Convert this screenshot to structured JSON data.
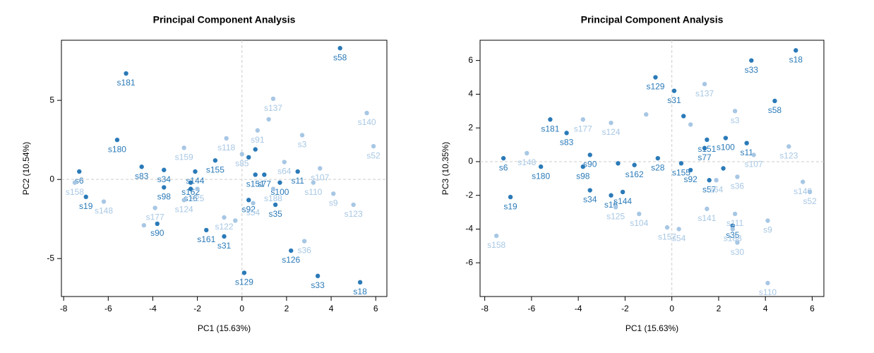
{
  "chart_data": [
    {
      "type": "scatter",
      "title": "Principal Component Analysis",
      "xlabel": "PC1 (15.63%)",
      "ylabel": "PC2 (10.54%)",
      "xlim": [
        -8.1,
        6.5
      ],
      "ylim": [
        -7.4,
        8.8
      ],
      "xticks": [
        -8,
        -6,
        -4,
        -2,
        0,
        2,
        4,
        6
      ],
      "yticks": [
        -5,
        0,
        5
      ],
      "vlines": [
        0
      ],
      "hlines": [
        0
      ],
      "series": [
        {
          "color": "#2a7ab8",
          "x": [
            4.4,
            -5.2,
            -5.6,
            -4.5,
            -7.3,
            -7.0,
            -3.8,
            -3.5,
            -3.5,
            -2.3,
            -2.3,
            -2.1,
            -1.6,
            -0.8,
            0.1,
            2.2,
            3.4,
            5.3,
            1.5,
            0.3,
            1.7,
            2.5,
            0.6,
            1.0,
            -1.2,
            0.6,
            0.3
          ],
          "y": [
            8.3,
            6.7,
            2.5,
            0.8,
            0.5,
            -1.1,
            -2.8,
            0.6,
            -0.5,
            -0.6,
            -0.2,
            0.5,
            -3.2,
            -3.6,
            -5.9,
            -4.5,
            -6.1,
            -6.5,
            -1.6,
            -1.3,
            -0.2,
            0.5,
            0.3,
            0.3,
            1.2,
            1.9,
            1.4
          ],
          "labels": [
            "s58",
            "s181",
            "s180",
            "s83",
            "s6",
            "s19",
            "s90",
            "s34",
            "s98",
            "s16",
            "s162",
            "s144",
            "s161",
            "s31",
            "s129",
            "s126",
            "s33",
            "s18",
            "s35",
            "s92",
            "s100",
            "s11",
            "s151",
            "s77",
            "s155",
            null,
            null
          ]
        },
        {
          "color": "#a7c7e4",
          "x": [
            -7.5,
            -6.2,
            -3.9,
            -2.6,
            -2.6,
            0.0,
            -0.7,
            0.7,
            1.4,
            2.7,
            1.9,
            5.6,
            5.9,
            3.5,
            3.2,
            4.1,
            5.0,
            2.8,
            1.4,
            0.5,
            -0.8,
            -2.0,
            -4.4,
            1.2,
            -0.3
          ],
          "y": [
            -0.2,
            -1.4,
            -1.8,
            -1.3,
            2.0,
            1.6,
            2.6,
            3.1,
            5.1,
            2.8,
            1.1,
            4.2,
            2.1,
            0.7,
            -0.2,
            -0.9,
            -1.6,
            -3.9,
            -0.6,
            -1.5,
            -2.4,
            -0.6,
            -2.9,
            3.8,
            -2.6
          ],
          "labels": [
            "s158",
            "s148",
            "s177",
            "s124",
            "s159",
            "s85",
            "s118",
            "s91",
            "s137",
            "s3",
            "s64",
            "s140",
            "s52",
            "s107",
            "s110",
            "s9",
            "s123",
            "s36",
            "s188",
            "s54",
            "s122",
            "s25",
            null,
            null,
            null
          ]
        }
      ]
    },
    {
      "type": "scatter",
      "title": "Principal Component Analysis",
      "xlabel": "PC1 (15.63%)",
      "ylabel": "PC3 (10.35%)",
      "xlim": [
        -8.2,
        6.5
      ],
      "ylim": [
        -8.0,
        7.2
      ],
      "xticks": [
        -8,
        -6,
        -4,
        -2,
        0,
        2,
        4,
        6
      ],
      "yticks": [
        -6,
        -4,
        -2,
        0,
        2,
        4,
        6
      ],
      "vlines": [
        0
      ],
      "hlines": [
        0
      ],
      "series": [
        {
          "color": "#2a7ab8",
          "x": [
            5.3,
            3.4,
            4.4,
            0.1,
            -0.7,
            -5.2,
            -5.6,
            -4.5,
            -7.2,
            -6.9,
            -3.5,
            -3.8,
            -3.5,
            -2.6,
            -2.1,
            -1.6,
            1.5,
            2.3,
            3.2,
            1.4,
            1.6,
            2.6,
            0.8,
            0.4,
            -0.6,
            0.5,
            2.2,
            -2.3
          ],
          "y": [
            6.6,
            6.0,
            3.6,
            4.2,
            5.0,
            2.5,
            -0.3,
            1.7,
            0.2,
            -2.1,
            0.4,
            -0.3,
            -1.7,
            -2.0,
            -1.8,
            -0.2,
            1.3,
            1.4,
            1.1,
            0.8,
            -1.1,
            -3.8,
            -0.5,
            -0.1,
            0.2,
            2.7,
            -0.4,
            -0.1
          ],
          "labels": [
            "s18",
            "s33",
            "s58",
            "s31",
            "s129",
            "s181",
            "s180",
            "s83",
            "s6",
            "s19",
            "s90",
            "s98",
            "s34",
            "s16",
            "s144",
            "s162",
            "s151",
            "s100",
            "s11",
            "s77",
            "s57",
            "s35",
            "s92",
            "s155",
            "s28",
            null,
            null,
            null
          ]
        },
        {
          "color": "#a7c7e4",
          "x": [
            -7.5,
            -6.2,
            -3.8,
            -2.6,
            1.4,
            2.7,
            5.0,
            5.6,
            5.9,
            4.1,
            4.1,
            2.7,
            1.5,
            2.8,
            2.6,
            -0.2,
            0.3,
            -1.4,
            -2.4,
            2.8,
            1.9,
            3.5,
            0.8,
            -1.1
          ],
          "y": [
            -4.4,
            0.5,
            2.5,
            2.3,
            4.6,
            3.0,
            0.9,
            -1.2,
            -1.8,
            -7.2,
            -3.5,
            -3.1,
            -2.8,
            -4.8,
            -4.0,
            -3.9,
            -4.0,
            -3.1,
            -2.7,
            -0.9,
            -1.1,
            0.4,
            2.2,
            2.8
          ],
          "labels": [
            "s158",
            "s148",
            "s177",
            "s124",
            "s137",
            "s3",
            "s123",
            "s140",
            "s52",
            "s110",
            "s9",
            "s111",
            "s141",
            "s30",
            "s188",
            "s157",
            "s54",
            "s104",
            "s125",
            "s36",
            "s64",
            "s107",
            null,
            null
          ]
        }
      ]
    }
  ]
}
